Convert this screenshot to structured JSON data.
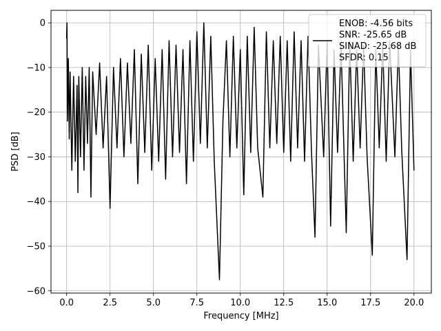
{
  "chart_data": {
    "type": "line",
    "title": "",
    "xlabel": "Frequency [MHz]",
    "ylabel": "PSD [dB]",
    "xlim": [
      -0.9,
      21.0
    ],
    "ylim": [
      -60.5,
      2.8
    ],
    "xticks": [
      0.0,
      2.5,
      5.0,
      7.5,
      10.0,
      12.5,
      15.0,
      17.5,
      20.0
    ],
    "xtick_labels": [
      "0.0",
      "2.5",
      "5.0",
      "7.5",
      "10.0",
      "12.5",
      "15.0",
      "17.5",
      "20.0"
    ],
    "yticks": [
      0,
      -10,
      -20,
      -30,
      -40,
      -50,
      -60
    ],
    "ytick_labels": [
      "0",
      "−10",
      "−20",
      "−30",
      "−40",
      "−50",
      "−60"
    ],
    "grid": true,
    "line_color": "#000000",
    "legend": {
      "placement": "top-right",
      "entries": [
        "ENOB: -4.56 bits",
        "SNR: -25.65 dB",
        "SINAD: -25.68 dB",
        "SFDR: 0.15"
      ]
    },
    "series": [
      {
        "name": "ENOB: -4.56 bits\nSNR: -25.65 dB\nSINAD: -25.68 dB\nSFDR: 0.15",
        "x": [
          0.0,
          0.02,
          0.05,
          0.1,
          0.15,
          0.2,
          0.3,
          0.4,
          0.5,
          0.6,
          0.65,
          0.7,
          0.8,
          0.9,
          1.0,
          1.1,
          1.2,
          1.3,
          1.4,
          1.5,
          1.7,
          1.9,
          2.1,
          2.3,
          2.5,
          2.7,
          2.9,
          3.1,
          3.3,
          3.5,
          3.7,
          3.9,
          4.1,
          4.3,
          4.5,
          4.7,
          4.9,
          5.1,
          5.3,
          5.5,
          5.7,
          5.9,
          6.1,
          6.3,
          6.5,
          6.7,
          6.9,
          7.1,
          7.3,
          7.5,
          7.7,
          7.9,
          8.1,
          8.3,
          8.5,
          8.8,
          9.0,
          9.2,
          9.4,
          9.6,
          9.8,
          10.0,
          10.2,
          10.4,
          10.6,
          10.8,
          11.0,
          11.3,
          11.5,
          11.7,
          11.9,
          12.1,
          12.3,
          12.5,
          12.7,
          12.9,
          13.1,
          13.3,
          13.5,
          13.7,
          13.9,
          14.1,
          14.3,
          14.5,
          14.8,
          15.0,
          15.2,
          15.4,
          15.6,
          15.8,
          16.1,
          16.3,
          16.5,
          16.7,
          16.9,
          17.1,
          17.3,
          17.6,
          17.8,
          18.0,
          18.2,
          18.4,
          18.6,
          18.9,
          19.1,
          19.3,
          19.6,
          19.8,
          20.0
        ],
        "y": [
          -3.5,
          0.0,
          -22.0,
          -8.0,
          -26.0,
          -11.0,
          -33.0,
          -12.0,
          -31.0,
          -14.0,
          -38.0,
          -12.0,
          -30.0,
          -10.0,
          -33.0,
          -12.0,
          -27.0,
          -10.0,
          -39.0,
          -11.0,
          -25.0,
          -9.0,
          -28.0,
          -12.0,
          -41.5,
          -10.0,
          -28.0,
          -8.0,
          -30.0,
          -9.0,
          -27.0,
          -6.0,
          -36.0,
          -7.0,
          -29.0,
          -5.0,
          -33.0,
          -8.0,
          -31.0,
          -6.0,
          -35.0,
          -4.0,
          -30.0,
          -5.0,
          -29.0,
          -6.0,
          -36.0,
          -4.0,
          -31.0,
          -2.0,
          -27.0,
          0.0,
          -28.0,
          -3.0,
          -31.0,
          -57.5,
          -22.0,
          -4.0,
          -30.0,
          -3.0,
          -28.0,
          -6.0,
          -38.5,
          -3.0,
          -29.0,
          -1.0,
          -28.0,
          -39.0,
          -2.0,
          -28.0,
          -4.0,
          -27.0,
          -3.0,
          -29.0,
          -4.0,
          -31.0,
          -2.0,
          -28.0,
          -4.0,
          -31.0,
          -3.0,
          -29.0,
          -48.0,
          -5.0,
          -30.0,
          -4.0,
          -45.5,
          -6.0,
          -29.0,
          -5.0,
          -47.0,
          -4.0,
          -31.0,
          -6.0,
          -28.0,
          -5.0,
          -30.0,
          -52.0,
          -6.0,
          -28.0,
          -5.0,
          -31.0,
          -4.0,
          -30.0,
          -5.0,
          -29.0,
          -53.0,
          -6.0,
          -33.0
        ]
      }
    ]
  }
}
